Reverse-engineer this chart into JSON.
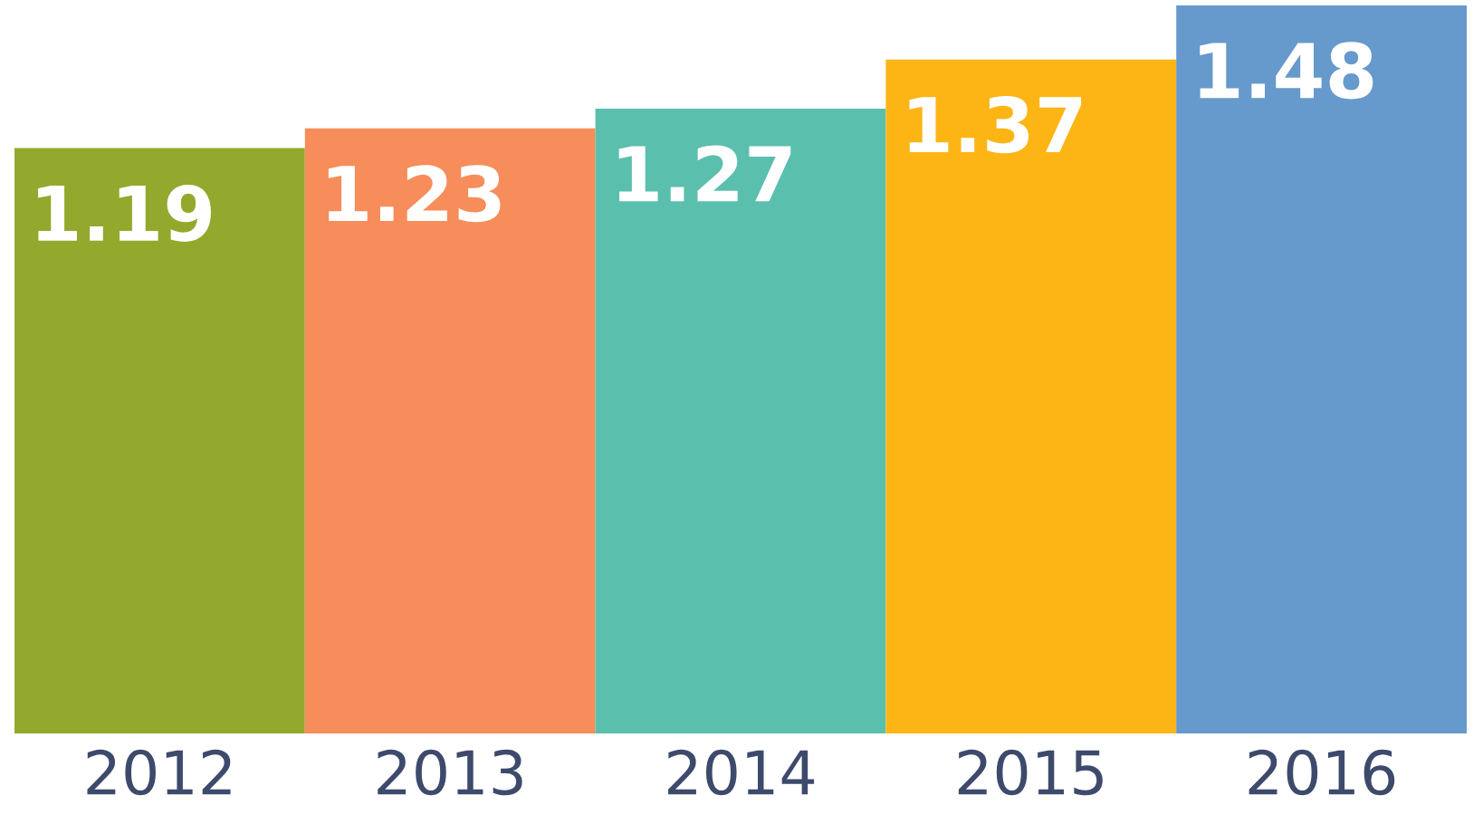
{
  "chart_data": {
    "type": "bar",
    "categories": [
      "2012",
      "2013",
      "2014",
      "2015",
      "2016"
    ],
    "values": [
      1.19,
      1.23,
      1.27,
      1.37,
      1.48
    ],
    "colors": [
      "#93a92d",
      "#f68d5a",
      "#5bbfad",
      "#fdb515",
      "#6699cc"
    ],
    "data_labels": true,
    "grid": false,
    "legend": false
  }
}
